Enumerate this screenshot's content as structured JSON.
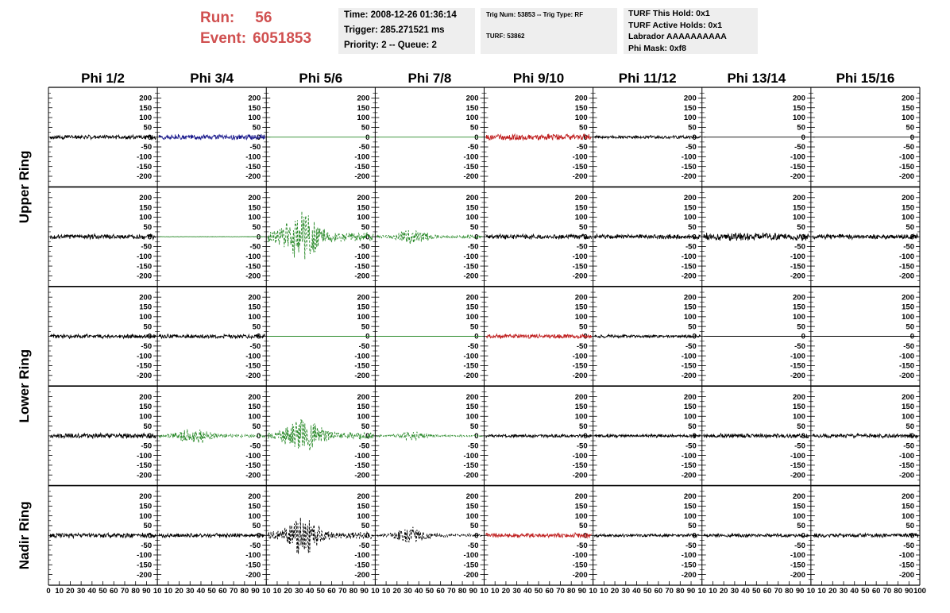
{
  "run": {
    "run_label": "Run:",
    "run_value": "56",
    "event_label": "Event:",
    "event_value": "6051853"
  },
  "info1": {
    "time": "Time: 2008-12-26 01:36:14",
    "trigger": "Trigger: 285.271521 ms",
    "priority": "Priority: 2 -- Queue: 2"
  },
  "info2": {
    "trig": "Trig Num: 53853 -- Trig Type: RF",
    "turf": "TURF: 53862"
  },
  "info3": {
    "hold": "TURF This Hold: 0x1",
    "active": "TURF Active Holds: 0x1",
    "labrador": "Labrador AAAAAAAAAA",
    "phimask": "Phi Mask: 0xf8"
  },
  "columns": [
    "Phi 1/2",
    "Phi 3/4",
    "Phi 5/6",
    "Phi 7/8",
    "Phi 9/10",
    "Phi 11/12",
    "Phi 13/14",
    "Phi 15/16"
  ],
  "rings": [
    "Upper Ring",
    "Lower Ring",
    "Nadir Ring"
  ],
  "colors": {
    "black": "#000000",
    "blue": "#1a1a8c",
    "green": "#2a8a2a",
    "red": "#c02020",
    "title_red": "#d05050",
    "box_bg": "#eeeeee"
  },
  "chart_data": {
    "type": "line",
    "y_ticks": [
      "200",
      "150",
      "100",
      "50",
      "0",
      "-50",
      "-100",
      "-150",
      "-200"
    ],
    "ylim": [
      -230,
      230
    ],
    "x_ticks": [
      "0",
      "10",
      "20",
      "30",
      "40",
      "50",
      "60",
      "70",
      "80",
      "90",
      "100"
    ],
    "xlim": [
      0,
      100
    ],
    "rows": 5,
    "panels": [
      {
        "row": 0,
        "col": 0,
        "color": "black",
        "style": "solid",
        "amp": 12,
        "env": "flat",
        "seed": 3
      },
      {
        "row": 0,
        "col": 1,
        "color": "blue",
        "style": "solid",
        "amp": 16,
        "env": "flat",
        "seed": 7
      },
      {
        "row": 0,
        "col": 2,
        "color": "green",
        "style": "solid",
        "amp": 0,
        "env": "flat",
        "seed": 1
      },
      {
        "row": 0,
        "col": 3,
        "color": "green",
        "style": "solid",
        "amp": 0,
        "env": "flat",
        "seed": 2
      },
      {
        "row": 0,
        "col": 4,
        "color": "red",
        "style": "solid",
        "amp": 18,
        "env": "flat",
        "seed": 9
      },
      {
        "row": 0,
        "col": 5,
        "color": "black",
        "style": "solid",
        "amp": 9,
        "env": "flat",
        "seed": 11
      },
      {
        "row": 0,
        "col": 6,
        "color": "black",
        "style": "solid",
        "amp": 0,
        "env": "flat",
        "seed": 4
      },
      {
        "row": 0,
        "col": 7,
        "color": "black",
        "style": "solid",
        "amp": 0,
        "env": "flat",
        "seed": 5
      },
      {
        "row": 1,
        "col": 0,
        "color": "black",
        "style": "solid",
        "amp": 14,
        "env": "flat",
        "seed": 13
      },
      {
        "row": 1,
        "col": 1,
        "color": "green",
        "style": "solid",
        "amp": 1,
        "env": "flat",
        "seed": 14
      },
      {
        "row": 1,
        "col": 2,
        "color": "green",
        "style": "dashed",
        "amp": 150,
        "env": "burst",
        "seed": 15
      },
      {
        "row": 1,
        "col": 3,
        "color": "green",
        "style": "dashed",
        "amp": 45,
        "env": "burst",
        "seed": 16
      },
      {
        "row": 1,
        "col": 4,
        "color": "black",
        "style": "solid",
        "amp": 14,
        "env": "flat",
        "seed": 17
      },
      {
        "row": 1,
        "col": 5,
        "color": "black",
        "style": "solid",
        "amp": 13,
        "env": "flat",
        "seed": 18
      },
      {
        "row": 1,
        "col": 6,
        "color": "black",
        "style": "solid",
        "amp": 22,
        "env": "flat",
        "seed": 19
      },
      {
        "row": 1,
        "col": 7,
        "color": "black",
        "style": "solid",
        "amp": 14,
        "env": "flat",
        "seed": 20
      },
      {
        "row": 2,
        "col": 0,
        "color": "black",
        "style": "solid",
        "amp": 12,
        "env": "flat",
        "seed": 21
      },
      {
        "row": 2,
        "col": 1,
        "color": "black",
        "style": "solid",
        "amp": 12,
        "env": "flat",
        "seed": 22
      },
      {
        "row": 2,
        "col": 2,
        "color": "green",
        "style": "solid",
        "amp": 0,
        "env": "flat",
        "seed": 23
      },
      {
        "row": 2,
        "col": 3,
        "color": "green",
        "style": "solid",
        "amp": 0,
        "env": "flat",
        "seed": 24
      },
      {
        "row": 2,
        "col": 4,
        "color": "red",
        "style": "solid",
        "amp": 12,
        "env": "flat",
        "seed": 25
      },
      {
        "row": 2,
        "col": 5,
        "color": "black",
        "style": "solid",
        "amp": 9,
        "env": "flat",
        "seed": 26
      },
      {
        "row": 2,
        "col": 6,
        "color": "black",
        "style": "solid",
        "amp": 0,
        "env": "flat",
        "seed": 27
      },
      {
        "row": 2,
        "col": 7,
        "color": "black",
        "style": "solid",
        "amp": 0,
        "env": "flat",
        "seed": 28
      },
      {
        "row": 3,
        "col": 0,
        "color": "black",
        "style": "solid",
        "amp": 14,
        "env": "flat",
        "seed": 29
      },
      {
        "row": 3,
        "col": 1,
        "color": "green",
        "style": "dashed",
        "amp": 50,
        "env": "burst",
        "seed": 30
      },
      {
        "row": 3,
        "col": 2,
        "color": "green",
        "style": "dashed",
        "amp": 110,
        "env": "burst",
        "seed": 31
      },
      {
        "row": 3,
        "col": 3,
        "color": "green",
        "style": "dashed",
        "amp": 25,
        "env": "burst",
        "seed": 32
      },
      {
        "row": 3,
        "col": 4,
        "color": "black",
        "style": "solid",
        "amp": 9,
        "env": "flat",
        "seed": 33
      },
      {
        "row": 3,
        "col": 5,
        "color": "black",
        "style": "solid",
        "amp": 9,
        "env": "flat",
        "seed": 34
      },
      {
        "row": 3,
        "col": 6,
        "color": "black",
        "style": "solid",
        "amp": 13,
        "env": "flat",
        "seed": 35
      },
      {
        "row": 3,
        "col": 7,
        "color": "black",
        "style": "solid",
        "amp": 12,
        "env": "flat",
        "seed": 36
      },
      {
        "row": 4,
        "col": 0,
        "color": "black",
        "style": "solid",
        "amp": 14,
        "env": "flat",
        "seed": 37
      },
      {
        "row": 4,
        "col": 1,
        "color": "black",
        "style": "solid",
        "amp": 12,
        "env": "flat",
        "seed": 38
      },
      {
        "row": 4,
        "col": 2,
        "color": "black",
        "style": "dashed",
        "amp": 110,
        "env": "burst",
        "seed": 39
      },
      {
        "row": 4,
        "col": 3,
        "color": "black",
        "style": "dashed",
        "amp": 45,
        "env": "burst",
        "seed": 40
      },
      {
        "row": 4,
        "col": 4,
        "color": "red",
        "style": "solid",
        "amp": 14,
        "env": "flat",
        "seed": 41
      },
      {
        "row": 4,
        "col": 5,
        "color": "black",
        "style": "solid",
        "amp": 9,
        "env": "flat",
        "seed": 42
      },
      {
        "row": 4,
        "col": 6,
        "color": "black",
        "style": "solid",
        "amp": 10,
        "env": "flat",
        "seed": 43
      },
      {
        "row": 4,
        "col": 7,
        "color": "black",
        "style": "solid",
        "amp": 12,
        "env": "flat",
        "seed": 44
      }
    ]
  }
}
